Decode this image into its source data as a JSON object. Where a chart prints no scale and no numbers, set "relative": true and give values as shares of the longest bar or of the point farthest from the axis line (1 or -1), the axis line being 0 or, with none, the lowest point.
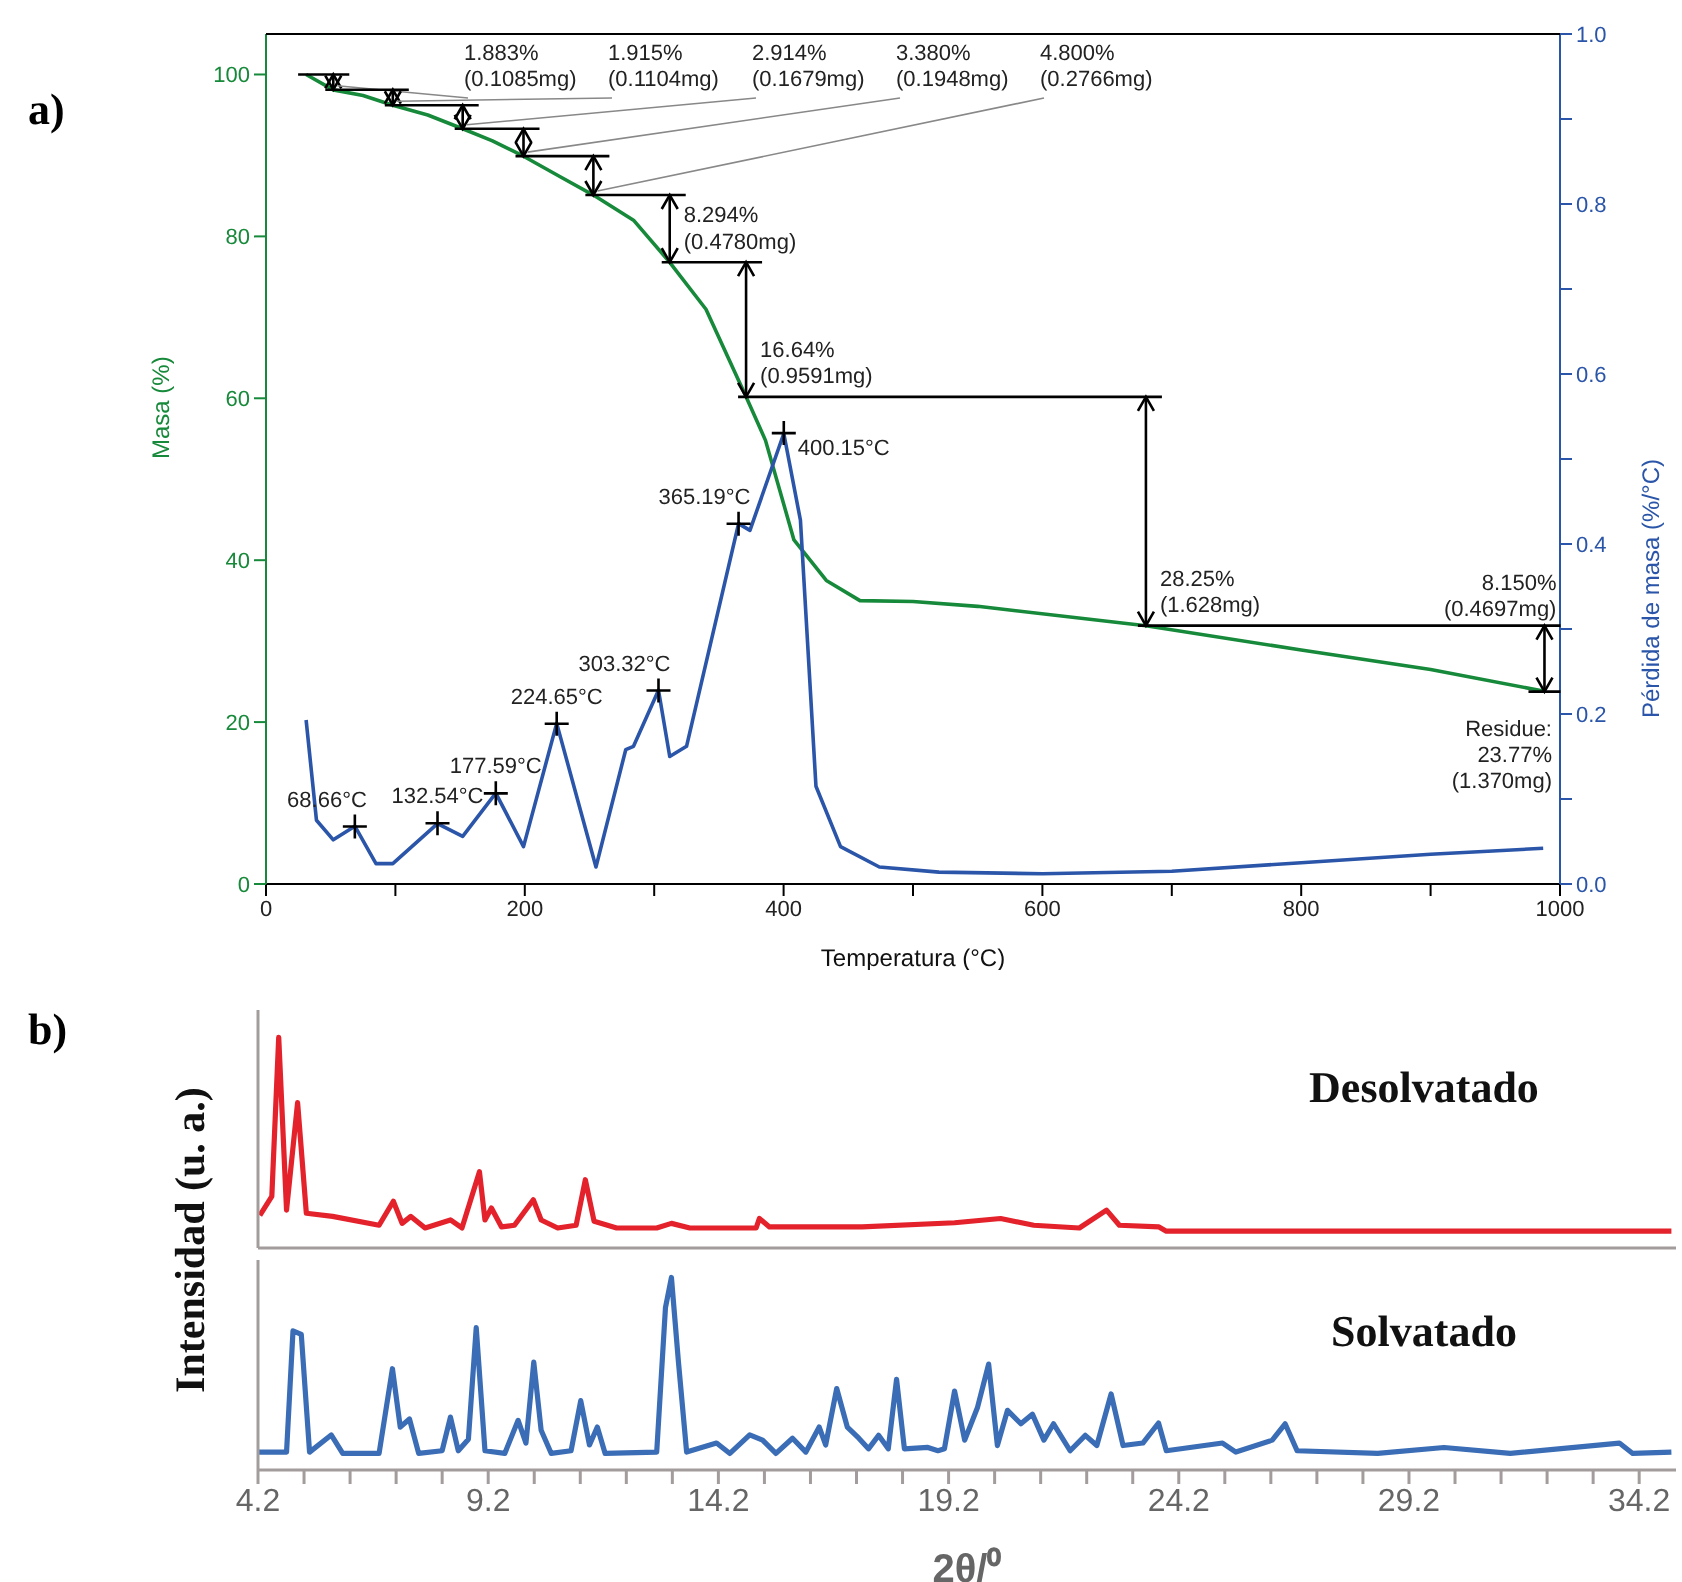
{
  "chart_data": [
    {
      "type": "line",
      "title": "a)",
      "xlabel": "Temperatura (°C)",
      "ylabel": "Masa (%)",
      "y2label": "Pérdida de masa (%/°C)",
      "xlim": [
        0,
        1000
      ],
      "xticks": [
        0,
        {
          "value": 100,
          "label": null
        },
        200,
        {
          "value": 300,
          "label": null
        },
        400,
        {
          "value": 500,
          "label": null
        },
        600,
        {
          "value": 700,
          "label": null
        },
        800,
        {
          "value": 900,
          "label": null
        },
        1000
      ],
      "ylim": [
        0,
        105
      ],
      "yticks": [
        0,
        20,
        40,
        60,
        80,
        100
      ],
      "y2lim": [
        0,
        1
      ],
      "y2ticks": [
        {
          "value": 0,
          "label": "0.0"
        },
        {
          "value": 0.1,
          "label": null
        },
        0.2,
        {
          "value": 0.3,
          "label": null
        },
        0.4,
        {
          "value": 0.5,
          "label": null
        },
        0.6,
        {
          "value": 0.7,
          "label": null
        },
        0.8,
        {
          "value": 0.9,
          "label": null
        },
        {
          "value": 1,
          "label": "1.0"
        }
      ],
      "series": [
        {
          "color": "#17893a",
          "x": [
            31,
            52,
            75,
            98,
            125,
            152,
            175,
            199,
            227,
            253,
            284,
            312,
            340,
            371,
            386,
            408,
            433,
            459,
            500,
            550,
            680,
            800,
            900,
            988
          ],
          "values": [
            100,
            98.1,
            97.4,
            96.2,
            95,
            93.3,
            91.8,
            89.9,
            87.4,
            85.1,
            82,
            76.8,
            71,
            60.2,
            54.8,
            42.5,
            37.5,
            35,
            34.9,
            34.3,
            31.9,
            28.9,
            26.5,
            23.8
          ]
        },
        {
          "axis": "y2",
          "color": "#2a55a8",
          "x": [
            31,
            39,
            52,
            68.66,
            85,
            98,
            132.54,
            152,
            177.59,
            199,
            224.65,
            255,
            278,
            284,
            303.32,
            312,
            325,
            365.19,
            374,
            400.15,
            413,
            425,
            444,
            474,
            520,
            600,
            700,
            800,
            900,
            987
          ],
          "values": [
            0.193,
            0.075,
            0.052,
            0.068,
            0.024,
            0.024,
            0.071,
            0.056,
            0.107,
            0.044,
            0.189,
            0.02,
            0.158,
            0.162,
            0.228,
            0.15,
            0.162,
            0.424,
            0.416,
            0.53,
            0.428,
            0.115,
            0.044,
            0.02,
            0.014,
            0.012,
            0.015,
            0.025,
            0.035,
            0.042
          ]
        }
      ],
      "annotations": [
        {
          "text": "1.883%\n(0.1085mg)",
          "x": 52,
          "y": 98.12
        },
        {
          "text": "1.915%\n(0.1104mg)",
          "x": 98,
          "y": 96.2
        },
        {
          "text": "2.914%\n(0.1679mg)",
          "x": 152,
          "y": 93.29
        },
        {
          "text": "3.380%\n(0.1948mg)",
          "x": 199,
          "y": 89.91
        },
        {
          "text": "4.800%\n(0.2766mg)",
          "x": 253,
          "y": 85.11
        },
        {
          "text": "8.294%\n(0.4780mg)",
          "x": 312,
          "y": 76.81
        },
        {
          "text": "16.64%\n(0.9591mg)",
          "x": 371,
          "y": 60.17
        },
        {
          "text": "28.25%\n(1.628mg)",
          "x": 680,
          "y": 31.92
        },
        {
          "text": "8.150%\n(0.4697mg)",
          "x": 988,
          "y": 23.77
        },
        "Residue:\n23.77%\n(1.370mg)",
        {
          "text": "68.66°C",
          "x": 68.66,
          "y": 7.1
        },
        {
          "text": "132.54°C",
          "x": 132.54,
          "y": 7.5
        },
        {
          "text": "177.59°C",
          "x": 177.59,
          "y": 11.2
        },
        {
          "text": "224.65°C",
          "x": 224.65,
          "y": 19.8
        },
        {
          "text": "303.32°C",
          "x": 303.32,
          "y": 23.9
        },
        {
          "text": "365.19°C",
          "x": 365.19,
          "y": 44.5
        },
        {
          "text": "400.15°C",
          "x": 400.15,
          "y": 55.7
        }
      ]
    },
    {
      "type": "line",
      "title": "b)",
      "ylabel": "Intensidad (u. a.)",
      "relative": true,
      "xlim": [
        4.2,
        35
      ],
      "tick_labels": false,
      "series": [
        {
          "name": "Desolvatado",
          "color": "#e3222b",
          "x": [
            4.24,
            4.5,
            4.65,
            4.82,
            5.06,
            5.25,
            5.82,
            6.83,
            7.14,
            7.33,
            7.52,
            7.83,
            8.38,
            8.63,
            9.01,
            9.13,
            9.27,
            9.49,
            9.77,
            10.18,
            10.35,
            10.71,
            11.11,
            11.31,
            11.5,
            11.99,
            12.86,
            13.18,
            13.58,
            15.02,
            15.09,
            15.31,
            17.32,
            19.33,
            20.33,
            21.05,
            22.04,
            22.63,
            22.91,
            23.77,
            23.93,
            34.9
          ],
          "values": [
            0.155,
            0.245,
            1,
            0.18,
            0.69,
            0.165,
            0.15,
            0.108,
            0.222,
            0.117,
            0.15,
            0.095,
            0.133,
            0.095,
            0.362,
            0.133,
            0.19,
            0.1,
            0.108,
            0.229,
            0.133,
            0.095,
            0.108,
            0.324,
            0.127,
            0.095,
            0.095,
            0.117,
            0.095,
            0.095,
            0.14,
            0.1,
            0.1,
            0.12,
            0.14,
            0.108,
            0.095,
            0.18,
            0.108,
            0.1,
            0.08,
            0.08
          ]
        }
      ]
    },
    {
      "type": "line",
      "xlabel": "2θ/⁰",
      "relative": true,
      "xlim": [
        4.2,
        35
      ],
      "tick_labels": "x",
      "xticks": [
        4.2,
        {
          "value": 5.2,
          "label": null
        },
        {
          "value": 6.2,
          "label": null
        },
        {
          "value": 7.2,
          "label": null
        },
        {
          "value": 8.2,
          "label": null
        },
        9.2,
        {
          "value": 10.2,
          "label": null
        },
        {
          "value": 11.2,
          "label": null
        },
        {
          "value": 12.2,
          "label": null
        },
        {
          "value": 13.2,
          "label": null
        },
        14.2,
        {
          "value": 15.2,
          "label": null
        },
        {
          "value": 16.2,
          "label": null
        },
        {
          "value": 17.2,
          "label": null
        },
        {
          "value": 18.2,
          "label": null
        },
        19.2,
        {
          "value": 20.2,
          "label": null
        },
        {
          "value": 21.2,
          "label": null
        },
        {
          "value": 22.2,
          "label": null
        },
        {
          "value": 23.2,
          "label": null
        },
        24.2,
        {
          "value": 25.2,
          "label": null
        },
        {
          "value": 26.2,
          "label": null
        },
        {
          "value": 27.2,
          "label": null
        },
        {
          "value": 28.2,
          "label": null
        },
        29.2,
        {
          "value": 30.2,
          "label": null
        },
        {
          "value": 31.2,
          "label": null
        },
        {
          "value": 32.2,
          "label": null
        },
        {
          "value": 33.2,
          "label": null
        },
        34.2
      ],
      "series": [
        {
          "name": "Solvatado",
          "color": "#3a6db5",
          "x": [
            4.2,
            4.82,
            4.96,
            5.14,
            5.32,
            5.79,
            6.04,
            6.83,
            7.12,
            7.29,
            7.49,
            7.69,
            8.2,
            8.38,
            8.55,
            8.77,
            8.94,
            9.13,
            9.56,
            9.85,
            10.02,
            10.19,
            10.35,
            10.57,
            11,
            11.21,
            11.4,
            11.57,
            11.74,
            12.86,
            13.05,
            13.18,
            13.33,
            13.51,
            14.16,
            14.45,
            14.88,
            15.16,
            15.45,
            15.81,
            16.1,
            16.39,
            16.53,
            16.77,
            17,
            17.25,
            17.46,
            17.68,
            17.89,
            18.07,
            18.24,
            18.75,
            18.97,
            19.11,
            19.33,
            19.55,
            19.83,
            20.07,
            20.26,
            20.48,
            20.77,
            21.02,
            21.27,
            21.48,
            21.84,
            22.17,
            22.42,
            22.73,
            22.99,
            23.42,
            23.76,
            23.93,
            25.15,
            25.44,
            26.23,
            26.51,
            26.77,
            28.52,
            29.96,
            31.4,
            33.77,
            34.06,
            34.9
          ],
          "values": [
            0.093,
            0.093,
            0.722,
            0.704,
            0.093,
            0.182,
            0.086,
            0.086,
            0.526,
            0.223,
            0.265,
            0.086,
            0.1,
            0.275,
            0.1,
            0.16,
            0.739,
            0.1,
            0.086,
            0.258,
            0.14,
            0.56,
            0.206,
            0.086,
            0.1,
            0.36,
            0.13,
            0.223,
            0.086,
            0.093,
            0.842,
            1,
            0.567,
            0.093,
            0.14,
            0.086,
            0.182,
            0.155,
            0.086,
            0.165,
            0.093,
            0.223,
            0.13,
            0.423,
            0.223,
            0.165,
            0.11,
            0.18,
            0.11,
            0.471,
            0.11,
            0.117,
            0.1,
            0.11,
            0.41,
            0.155,
            0.326,
            0.55,
            0.127,
            0.31,
            0.24,
            0.29,
            0.155,
            0.24,
            0.1,
            0.18,
            0.127,
            0.395,
            0.127,
            0.14,
            0.244,
            0.1,
            0.14,
            0.093,
            0.155,
            0.24,
            0.1,
            0.086,
            0.117,
            0.086,
            0.14,
            0.086,
            0.093
          ]
        }
      ]
    }
  ]
}
